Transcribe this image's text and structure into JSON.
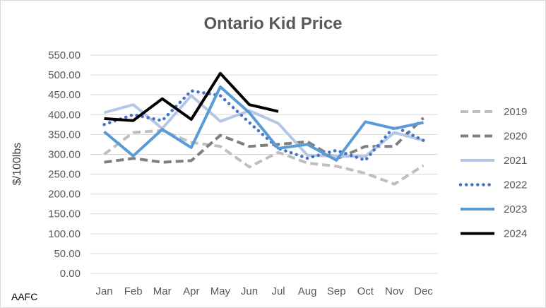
{
  "chart_data": {
    "type": "line",
    "title": "Ontario Kid Price",
    "ylabel": "$/100lbs",
    "xlabel": "",
    "source_note": "AAFC",
    "categories": [
      "Jan",
      "Feb",
      "Mar",
      "Apr",
      "May",
      "Jun",
      "Jul",
      "Aug",
      "Sep",
      "Oct",
      "Nov",
      "Dec"
    ],
    "ylim": [
      0,
      550
    ],
    "yticks": [
      "0.00",
      "50.00",
      "100.00",
      "150.00",
      "200.00",
      "250.00",
      "300.00",
      "350.00",
      "400.00",
      "450.00",
      "500.00",
      "550.00"
    ],
    "grid": true,
    "legend_position": "right",
    "series": [
      {
        "name": "2019",
        "color": "#bfbfbf",
        "style": "dashed",
        "values": [
          300,
          355,
          360,
          330,
          320,
          268,
          305,
          278,
          270,
          252,
          225,
          272
        ]
      },
      {
        "name": "2020",
        "color": "#7f7f7f",
        "style": "dashed",
        "values": [
          280,
          290,
          280,
          284,
          348,
          320,
          325,
          332,
          288,
          320,
          320,
          392
        ]
      },
      {
        "name": "2021",
        "color": "#b4c7e7",
        "style": "solid",
        "values": [
          405,
          425,
          365,
          448,
          383,
          410,
          378,
          298,
          295,
          295,
          355,
          335
        ]
      },
      {
        "name": "2022",
        "color": "#4472c4",
        "style": "dotted",
        "values": [
          375,
          400,
          385,
          460,
          448,
          380,
          315,
          290,
          310,
          285,
          370,
          335
        ]
      },
      {
        "name": "2023",
        "color": "#5b9bd5",
        "style": "solid",
        "values": [
          357,
          296,
          363,
          317,
          470,
          405,
          315,
          325,
          285,
          382,
          365,
          380
        ]
      },
      {
        "name": "2024",
        "color": "#000000",
        "style": "solid",
        "values": [
          390,
          385,
          440,
          388,
          504,
          425,
          408,
          null,
          null,
          null,
          null,
          null
        ]
      }
    ]
  }
}
